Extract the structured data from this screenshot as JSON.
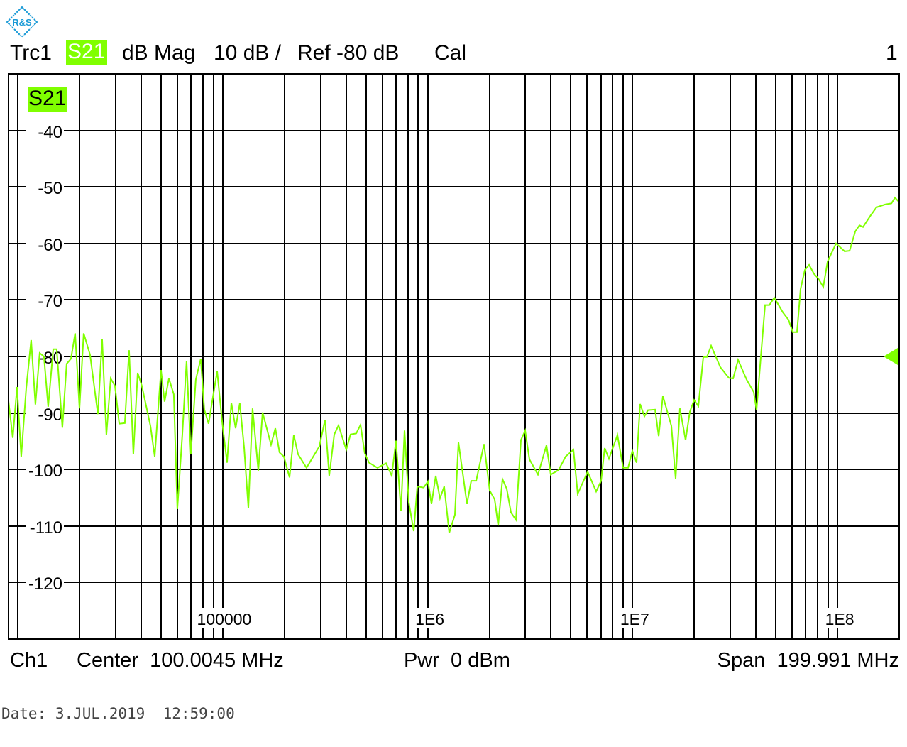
{
  "logo": {
    "text": "R&S",
    "color": "#1a9ad6"
  },
  "header": {
    "trace": "Trc1",
    "param": "S21",
    "format": "dB Mag",
    "scale": "10 dB /",
    "ref": "Ref -80 dB",
    "cal": "Cal",
    "window": "1"
  },
  "footer": {
    "channel": "Ch1",
    "center": "Center  100.0045 MHz",
    "power": "Pwr  0 dBm",
    "span": "Span  199.991 MHz"
  },
  "date": "Date: 3.JUL.2019  12:59:00",
  "colors": {
    "trace": "#80ff00",
    "grid": "#000000"
  },
  "chart_data": {
    "type": "line",
    "trace_label": "S21",
    "x_scale": "log",
    "xlim": [
      9000,
      200000000
    ],
    "ylim": [
      -130,
      -30
    ],
    "grid": true,
    "reference_level": -80,
    "x_tick_labels": [
      {
        "value": 100000,
        "label": "100000"
      },
      {
        "value": 1000000,
        "label": "1E6"
      },
      {
        "value": 10000000,
        "label": "1E7"
      },
      {
        "value": 100000000,
        "label": "1E8"
      }
    ],
    "y_ticks": [
      -40,
      -50,
      -60,
      -70,
      -80,
      -90,
      -100,
      -110,
      -120
    ],
    "y_tick_labels": [
      "-40",
      "-50",
      "-60",
      "-70",
      "-80",
      "-90",
      "-100",
      "-110",
      "-120"
    ],
    "series": [
      {
        "points": [
          [
            9000,
            -87.9
          ],
          [
            9440,
            -94.4
          ],
          [
            9900,
            -85.4
          ],
          [
            10380,
            -97.7
          ],
          [
            10980,
            -85.7
          ],
          [
            11610,
            -77.1
          ],
          [
            12180,
            -88.5
          ],
          [
            12770,
            -79.4
          ],
          [
            13400,
            -80.0
          ],
          [
            14060,
            -88.9
          ],
          [
            14870,
            -78.7
          ],
          [
            15470,
            -78.7
          ],
          [
            16490,
            -92.6
          ],
          [
            17300,
            -81.3
          ],
          [
            18150,
            -80.4
          ],
          [
            19030,
            -75.9
          ],
          [
            19980,
            -89.2
          ],
          [
            20950,
            -75.9
          ],
          [
            22500,
            -79.7
          ],
          [
            24570,
            -90.2
          ],
          [
            25770,
            -76.9
          ],
          [
            27040,
            -93.9
          ],
          [
            28370,
            -83.9
          ],
          [
            29760,
            -85.2
          ],
          [
            31220,
            -91.9
          ],
          [
            33270,
            -91.8
          ],
          [
            34900,
            -78.9
          ],
          [
            36610,
            -97.3
          ],
          [
            38410,
            -82.9
          ],
          [
            40290,
            -85.2
          ],
          [
            44360,
            -92.3
          ],
          [
            46530,
            -97.7
          ],
          [
            49960,
            -82.4
          ],
          [
            52000,
            -88.0
          ],
          [
            54560,
            -83.9
          ],
          [
            57680,
            -86.7
          ],
          [
            60030,
            -107.0
          ],
          [
            63470,
            -93.9
          ],
          [
            66580,
            -80.8
          ],
          [
            69850,
            -97.3
          ],
          [
            73850,
            -84.1
          ],
          [
            78090,
            -80.4
          ],
          [
            81280,
            -89.4
          ],
          [
            85260,
            -91.9
          ],
          [
            93840,
            -82.6
          ],
          [
            99220,
            -91.4
          ],
          [
            104900,
            -98.8
          ],
          [
            110100,
            -88.2
          ],
          [
            115500,
            -92.7
          ],
          [
            121100,
            -88.3
          ],
          [
            127100,
            -96.1
          ],
          [
            133300,
            -106.8
          ],
          [
            139800,
            -89.2
          ],
          [
            149100,
            -100.2
          ],
          [
            156400,
            -89.9
          ],
          [
            172000,
            -95.6
          ],
          [
            180500,
            -92.7
          ],
          [
            189300,
            -97.0
          ],
          [
            198600,
            -97.7
          ],
          [
            211700,
            -101.4
          ],
          [
            222100,
            -93.9
          ],
          [
            233000,
            -97.3
          ],
          [
            256300,
            -99.7
          ],
          [
            295900,
            -95.9
          ],
          [
            315400,
            -91.2
          ],
          [
            330800,
            -101.1
          ],
          [
            349900,
            -93.8
          ],
          [
            367000,
            -92.2
          ],
          [
            400600,
            -96.5
          ],
          [
            420200,
            -93.8
          ],
          [
            448000,
            -93.6
          ],
          [
            469900,
            -92.1
          ],
          [
            492900,
            -97.1
          ],
          [
            517100,
            -98.8
          ],
          [
            569000,
            -99.7
          ],
          [
            626300,
            -98.9
          ],
          [
            667500,
            -101.1
          ],
          [
            700200,
            -94.9
          ],
          [
            740400,
            -107.3
          ],
          [
            770500,
            -93.1
          ],
          [
            808300,
            -105.8
          ],
          [
            854700,
            -110.9
          ],
          [
            889500,
            -103.0
          ],
          [
            955700,
            -103.2
          ],
          [
            1002500,
            -102.1
          ],
          [
            1043300,
            -106.1
          ],
          [
            1094400,
            -101.1
          ],
          [
            1148000,
            -105.1
          ],
          [
            1204000,
            -103.0
          ],
          [
            1274000,
            -111.2
          ],
          [
            1358000,
            -108.0
          ],
          [
            1413000,
            -95.2
          ],
          [
            1555000,
            -106.1
          ],
          [
            1631000,
            -102.0
          ],
          [
            1725000,
            -102.0
          ],
          [
            1883000,
            -95.5
          ],
          [
            2007000,
            -103.7
          ],
          [
            2122000,
            -105.3
          ],
          [
            2208000,
            -109.9
          ],
          [
            2316000,
            -101.7
          ],
          [
            2430000,
            -103.4
          ],
          [
            2549000,
            -107.6
          ],
          [
            2695000,
            -108.9
          ],
          [
            2850000,
            -94.8
          ],
          [
            2990000,
            -93.1
          ],
          [
            3136000,
            -98.2
          ],
          [
            3451000,
            -100.9
          ],
          [
            3798000,
            -95.7
          ],
          [
            3985000,
            -100.9
          ],
          [
            4350000,
            -100.1
          ],
          [
            4712000,
            -97.7
          ],
          [
            5144000,
            -96.5
          ],
          [
            5395000,
            -104.3
          ],
          [
            6033000,
            -100.4
          ],
          [
            6637000,
            -103.9
          ],
          [
            7020000,
            -102.0
          ],
          [
            7304000,
            -96.2
          ],
          [
            7662000,
            -98.1
          ],
          [
            8433000,
            -93.9
          ],
          [
            8989000,
            -99.7
          ],
          [
            9505000,
            -99.7
          ],
          [
            9970000,
            -96.7
          ],
          [
            10460000,
            -98.8
          ],
          [
            10880000,
            -88.4
          ],
          [
            11420000,
            -90.6
          ],
          [
            11880000,
            -89.5
          ],
          [
            12870000,
            -89.4
          ],
          [
            13400000,
            -94.1
          ],
          [
            14050000,
            -87.0
          ],
          [
            15460000,
            -92.3
          ],
          [
            16220000,
            -101.6
          ],
          [
            17010000,
            -89.2
          ],
          [
            18140000,
            -94.8
          ],
          [
            19030000,
            -89.8
          ],
          [
            19960000,
            -87.7
          ],
          [
            20940000,
            -88.8
          ],
          [
            22140000,
            -80.1
          ],
          [
            23030000,
            -80.1
          ],
          [
            24160000,
            -78.1
          ],
          [
            26810000,
            -81.9
          ],
          [
            29500000,
            -83.8
          ],
          [
            30950000,
            -83.9
          ],
          [
            32720000,
            -80.6
          ],
          [
            36010000,
            -84.1
          ],
          [
            38990000,
            -86.3
          ],
          [
            40260000,
            -89.5
          ],
          [
            42240000,
            -80.1
          ],
          [
            44310000,
            -70.9
          ],
          [
            46480000,
            -70.9
          ],
          [
            49160000,
            -69.6
          ],
          [
            54100000,
            -72.2
          ],
          [
            57660000,
            -73.5
          ],
          [
            60490000,
            -75.7
          ],
          [
            63450000,
            -75.7
          ],
          [
            66030000,
            -68.1
          ],
          [
            69270000,
            -64.7
          ],
          [
            72660000,
            -63.8
          ],
          [
            76840000,
            -65.4
          ],
          [
            80600000,
            -66.2
          ],
          [
            85230000,
            -67.7
          ],
          [
            89410000,
            -63.2
          ],
          [
            98380000,
            -60.0
          ],
          [
            108300000,
            -61.4
          ],
          [
            114500000,
            -61.3
          ],
          [
            122000000,
            -57.9
          ],
          [
            128000000,
            -56.8
          ],
          [
            133200000,
            -57.1
          ],
          [
            145400000,
            -55.0
          ],
          [
            155000000,
            -53.6
          ],
          [
            170600000,
            -53.1
          ],
          [
            183300000,
            -52.9
          ],
          [
            190700000,
            -51.9
          ],
          [
            200000000,
            -52.7
          ]
        ]
      }
    ]
  }
}
